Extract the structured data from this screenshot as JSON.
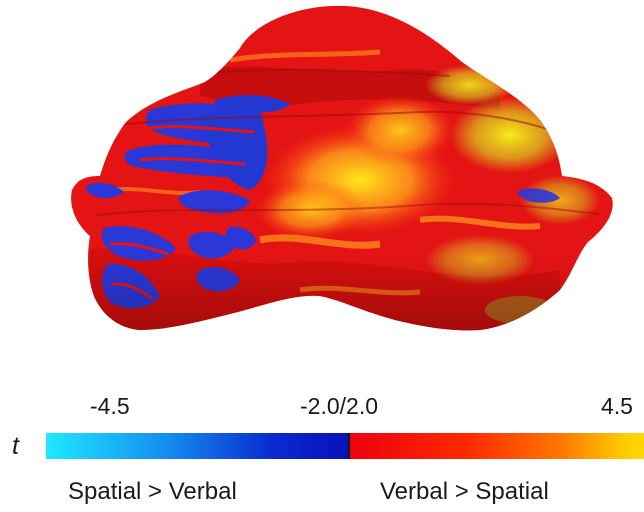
{
  "figure": {
    "surface_colors": {
      "red": "#e81414",
      "dark_red": "#c80a0a",
      "yellow": "#f5e614",
      "orange": "#ff9a1a",
      "blue": "#2a38d8",
      "olive": "#9ba022"
    }
  },
  "colorbar": {
    "stat_label": "t",
    "tick_min": "-4.5",
    "tick_mid": "-2.0/2.0",
    "tick_max": "4.5",
    "negative_colors": [
      "#1ee8ff",
      "#0a10b8"
    ],
    "positive_colors": [
      "#ee0010",
      "#ffd800"
    ],
    "left_condition": "Spatial > Verbal",
    "right_condition": "Verbal > Spatial"
  }
}
